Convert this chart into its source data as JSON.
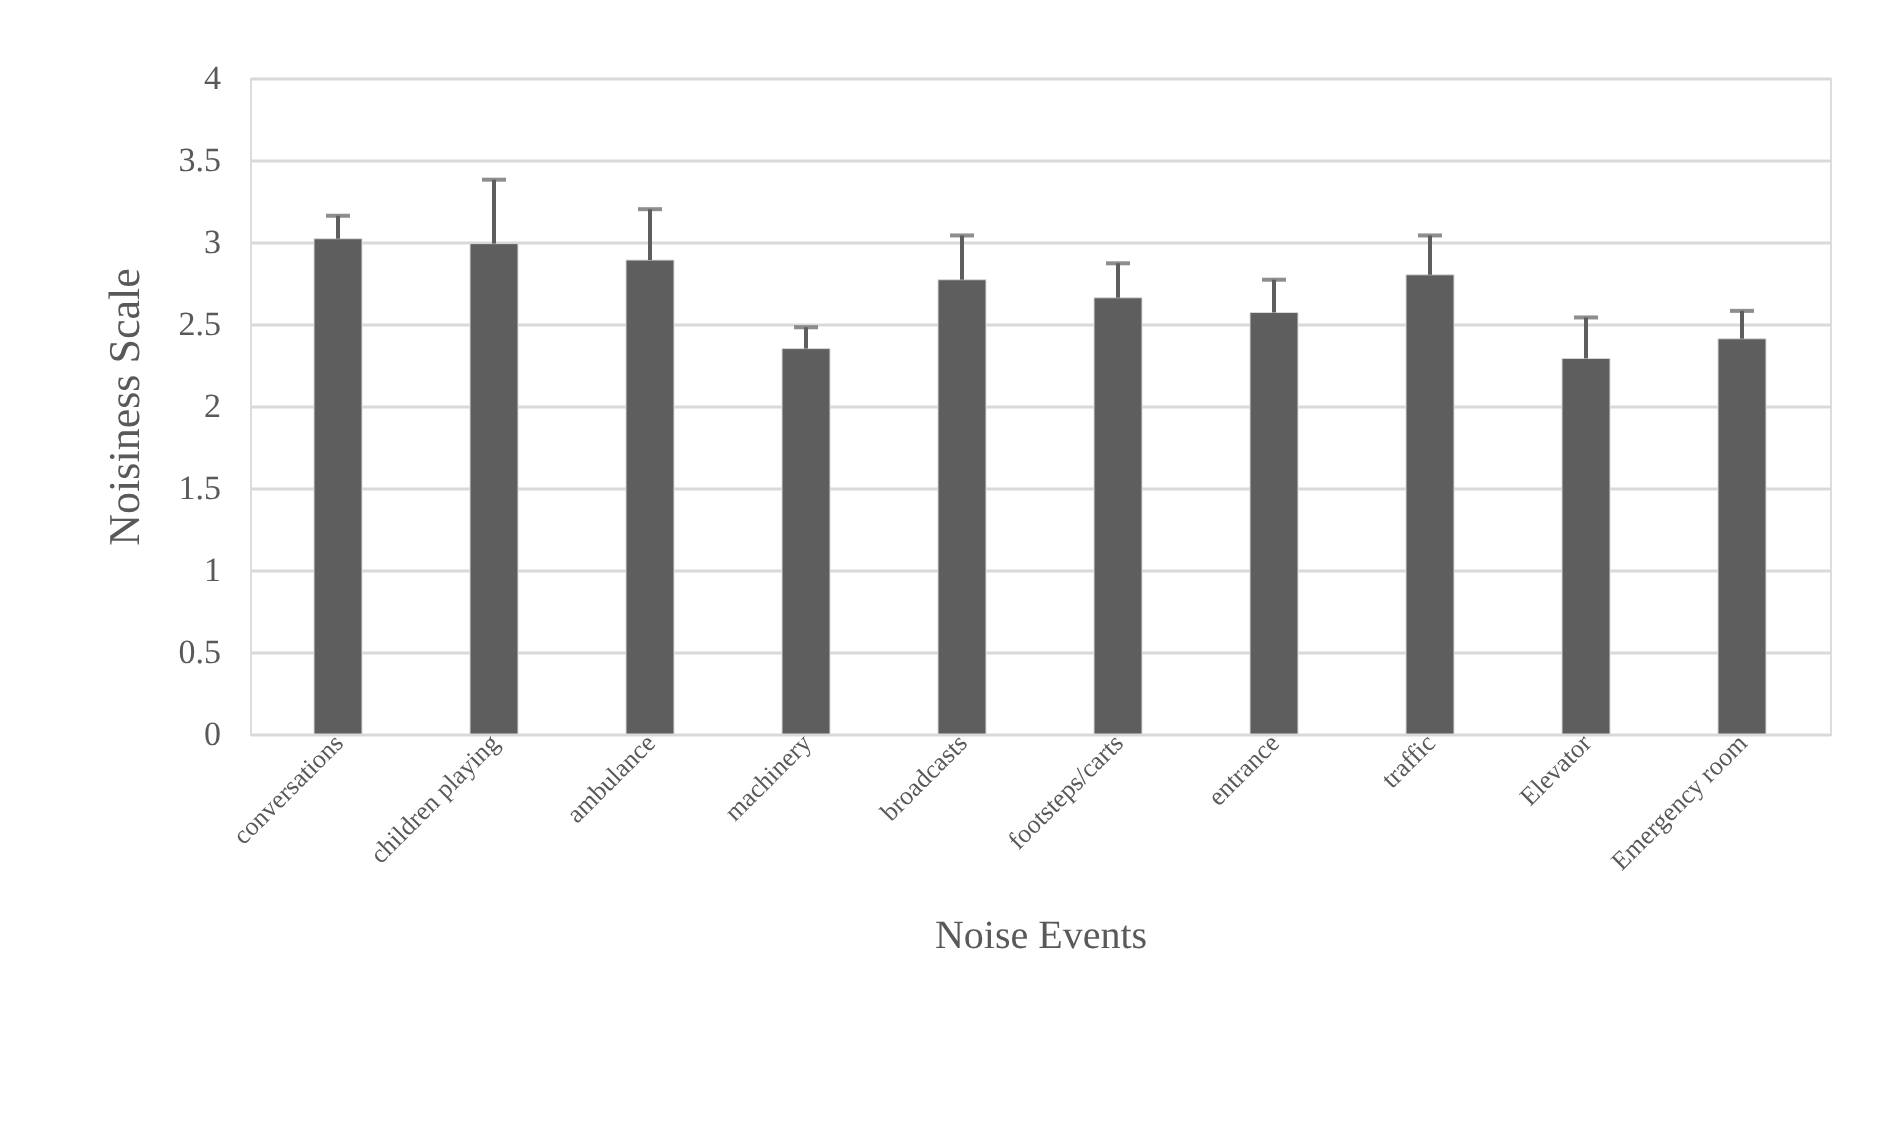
{
  "chart_data": {
    "type": "bar",
    "xlabel": "Noise Events",
    "ylabel": "Noisiness Scale",
    "categories": [
      "conversations",
      "children playing",
      "ambulance",
      "machinery",
      "broadcasts",
      "footsteps/carts",
      "entrance",
      "traffic",
      "Elevator",
      "Emergency room"
    ],
    "values": [
      3.02,
      2.99,
      2.89,
      2.35,
      2.77,
      2.66,
      2.57,
      2.8,
      2.29,
      2.41
    ],
    "errors": [
      [
        3.02,
        3.16
      ],
      [
        2.99,
        3.38
      ],
      [
        2.89,
        3.2
      ],
      [
        2.35,
        2.48
      ],
      [
        2.77,
        3.04
      ],
      [
        2.66,
        2.87
      ],
      [
        2.57,
        2.77
      ],
      [
        2.8,
        3.04
      ],
      [
        2.29,
        2.54
      ],
      [
        2.41,
        2.58
      ]
    ],
    "color": "#5e5e5e",
    "ylim": [
      0,
      4
    ],
    "yticks": [
      0,
      0.5,
      1,
      1.5,
      2,
      2.5,
      3,
      3.5,
      4
    ],
    "grid": "y"
  }
}
